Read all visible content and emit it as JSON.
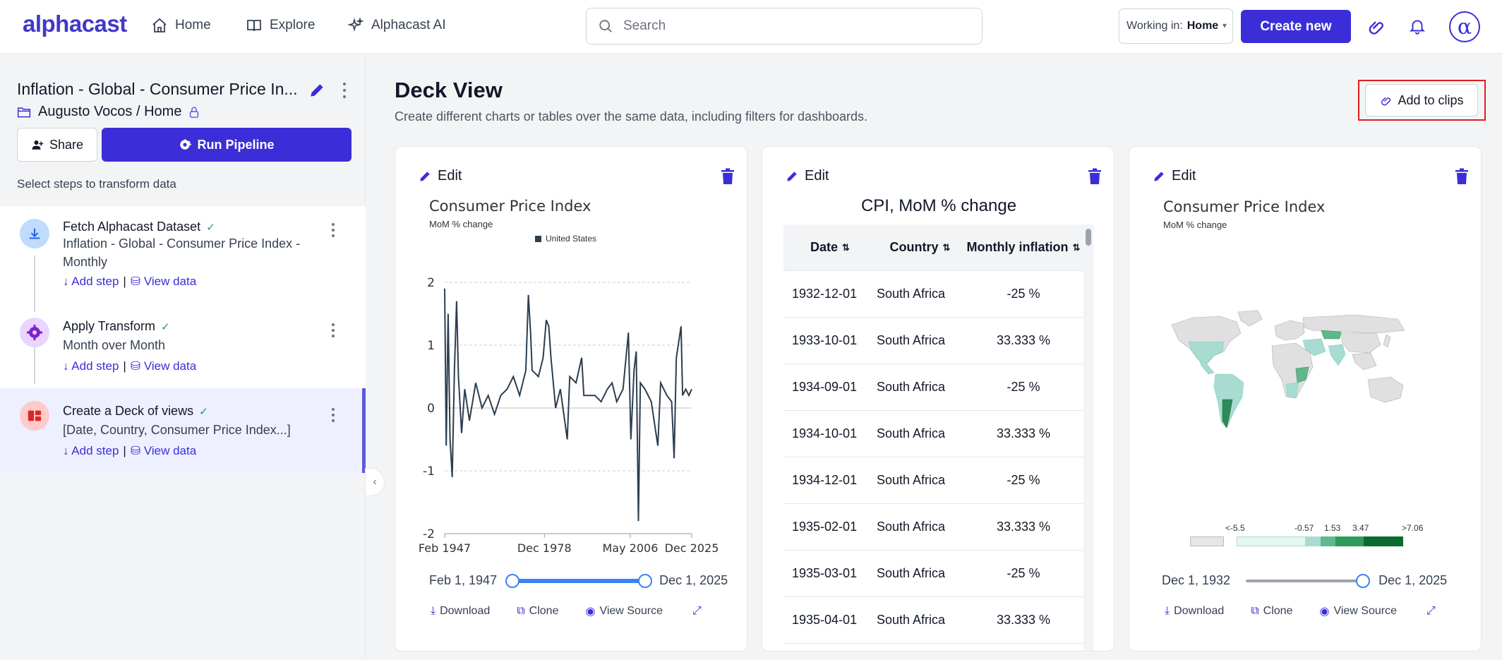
{
  "app": {
    "logo": "alphacast",
    "nav": [
      {
        "label": "Home",
        "icon": "home-icon"
      },
      {
        "label": "Explore",
        "icon": "book-icon"
      },
      {
        "label": "Alphacast AI",
        "icon": "sparkle-icon"
      }
    ],
    "search_placeholder": "Search",
    "working_in_label": "Working in:",
    "working_in_value": "Home",
    "create_new": "Create new",
    "avatar": "α",
    "accent": "#3b2ed8"
  },
  "sidebar": {
    "pipeline_title": "Inflation - Global - Consumer Price In...",
    "breadcrumb": "Augusto Vocos / Home",
    "share": "Share",
    "run_pipeline": "Run Pipeline",
    "steps_hint": "Select steps to transform data",
    "steps": [
      {
        "title": "Fetch Alphacast Dataset",
        "desc": "Inflation - Global - Consumer Price Index - Monthly",
        "add_step": "Add step",
        "view_data": "View data",
        "icon": "download-icon"
      },
      {
        "title": "Apply Transform",
        "desc": "Month over Month",
        "add_step": "Add step",
        "view_data": "View data",
        "icon": "gear-icon"
      },
      {
        "title": "Create a Deck of views",
        "desc": "[Date, Country, Consumer Price Index...]",
        "add_step": "Add step",
        "view_data": "View data",
        "icon": "deck-icon"
      }
    ]
  },
  "main": {
    "title": "Deck View",
    "subtitle": "Create different charts or tables over the same data, including filters for dashboards.",
    "add_to_clips": "Add to clips",
    "cards": [
      {
        "edit": "Edit",
        "chart_title": "Consumer Price Index",
        "chart_sub": "MoM % change",
        "legend": "United States",
        "range_start": "Feb 1, 1947",
        "range_end": "Dec 1, 2025",
        "actions": {
          "download": "Download",
          "clone": "Clone",
          "view_source": "View Source"
        }
      },
      {
        "edit": "Edit",
        "table_title": "CPI, MoM % change",
        "columns": [
          "Date",
          "Country",
          "Monthly inflation"
        ],
        "rows": [
          [
            "1932-12-01",
            "South Africa",
            "-25 %"
          ],
          [
            "1933-10-01",
            "South Africa",
            "33.333 %"
          ],
          [
            "1934-09-01",
            "South Africa",
            "-25 %"
          ],
          [
            "1934-10-01",
            "South Africa",
            "33.333 %"
          ],
          [
            "1934-12-01",
            "South Africa",
            "-25 %"
          ],
          [
            "1935-02-01",
            "South Africa",
            "33.333 %"
          ],
          [
            "1935-03-01",
            "South Africa",
            "-25 %"
          ],
          [
            "1935-04-01",
            "South Africa",
            "33.333 %"
          ]
        ]
      },
      {
        "edit": "Edit",
        "chart_title": "Consumer Price Index",
        "chart_sub": "MoM % change",
        "scale_labels": [
          "<-5.5",
          "-0.57",
          "1.53",
          "3.47",
          ">7.06"
        ],
        "range_start": "Dec 1, 1932",
        "range_end": "Dec 1, 2025",
        "actions": {
          "download": "Download",
          "clone": "Clone",
          "view_source": "View Source"
        }
      }
    ]
  },
  "chart_data": [
    {
      "type": "line",
      "title": "Consumer Price Index",
      "subtitle": "MoM % change",
      "series": [
        {
          "name": "United States"
        }
      ],
      "x_ticks": [
        "Feb 1947",
        "Dec 1978",
        "May 2006",
        "Dec 2025"
      ],
      "y_ticks": [
        2,
        1,
        0,
        -1,
        -2
      ],
      "ylim": [
        -2,
        2
      ],
      "x": [
        1947.1,
        1947.6,
        1948.2,
        1948.8,
        1949.5,
        1950.2,
        1950.9,
        1951.5,
        1952.5,
        1953.5,
        1955,
        1957,
        1959,
        1961,
        1963,
        1965,
        1967,
        1969,
        1971,
        1973,
        1973.8,
        1974.5,
        1975,
        1977,
        1978.5,
        1979.5,
        1980.3,
        1981,
        1982.5,
        1984,
        1986.2,
        1987,
        1989,
        1990.8,
        1991.5,
        1993,
        1995,
        1997,
        1999,
        2000.5,
        2002,
        2004,
        2005.7,
        2006.5,
        2007.5,
        2008.2,
        2008.9,
        2009.5,
        2011,
        2013,
        2015.1,
        2016,
        2018,
        2019.5,
        2020.3,
        2021,
        2021.6,
        2022.5,
        2023,
        2024,
        2025,
        2025.9
      ],
      "y": [
        1.9,
        -0.6,
        1.5,
        -0.5,
        -1.1,
        0.6,
        1.7,
        0.5,
        -0.4,
        0.3,
        -0.2,
        0.4,
        0.0,
        0.2,
        -0.1,
        0.2,
        0.3,
        0.5,
        0.2,
        0.6,
        1.8,
        1.2,
        0.6,
        0.5,
        0.8,
        1.4,
        1.3,
        0.8,
        0.0,
        0.3,
        -0.5,
        0.5,
        0.4,
        0.8,
        0.2,
        0.2,
        0.2,
        0.1,
        0.3,
        0.4,
        0.1,
        0.3,
        1.2,
        -0.5,
        0.6,
        0.9,
        -1.8,
        0.4,
        0.3,
        0.1,
        -0.6,
        0.4,
        0.2,
        0.1,
        -0.8,
        0.8,
        1.0,
        1.3,
        0.2,
        0.3,
        0.2,
        0.3
      ]
    },
    {
      "type": "table",
      "title": "CPI, MoM % change"
    },
    {
      "type": "heatmap",
      "title": "Consumer Price Index",
      "subtitle": "MoM % change",
      "scale": [
        "<-5.5",
        "-0.57",
        "1.53",
        "3.47",
        ">7.06"
      ]
    }
  ]
}
